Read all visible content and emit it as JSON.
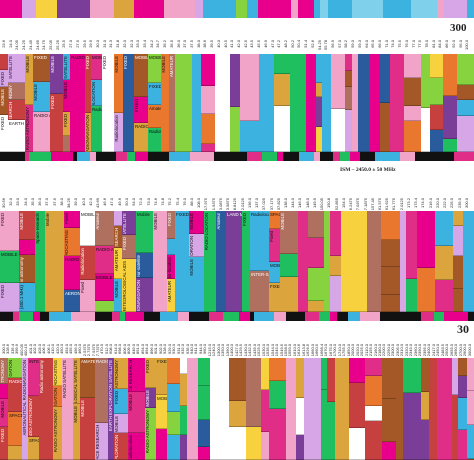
{
  "markers": {
    "top_right": "300",
    "ism": "ISM – 2450.0 ± 50 MHz",
    "bottom_right": "30"
  },
  "band1": {
    "ticks": [
      "23.6",
      "24.0",
      "24.05",
      "24.25",
      "24.45",
      "24.65",
      "24.75",
      "25.05",
      "25.25",
      "25.5",
      "27.0",
      "27.5",
      "29.5",
      "29.9",
      "30.0",
      "31.0",
      "31.3",
      "31.8",
      "32.0",
      "32.3",
      "33.0",
      "33.4",
      "34.2",
      "34.7",
      "35.2",
      "35.5",
      "36.0",
      "37.0",
      "37.5",
      "38.0",
      "38.6",
      "39.5",
      "40.0",
      "40.5",
      "41.0",
      "42.0",
      "42.5",
      "43.5",
      "45.5",
      "46.9",
      "47.0",
      "47.2",
      "48.2",
      "50.2",
      "50.4",
      "51.4",
      "52.6",
      "54.25",
      "55.78",
      "56.9",
      "57.0",
      "58.2",
      "59.0",
      "59.3",
      "64.0",
      "65.0",
      "66.0",
      "71.0",
      "74.0",
      "75.5",
      "76.0",
      "77.0",
      "77.5",
      "78.0",
      "81.0",
      "84.0",
      "86.0",
      "92.0",
      "95.0",
      "100.0"
    ],
    "labels": [
      "FIXED",
      "MOBILE",
      "FIXED",
      "SATELLITE",
      "RADIO ASTRONOMY",
      "SPACE RESEARCH",
      "EARTH EXPLORATION",
      "MOBILE",
      "RADIO ASTRONOMY",
      "FIXED",
      "MOBILE",
      "RADIO ASTRONOMY",
      "MOBILE",
      "FIXED",
      "INTER-SATELLITE",
      "MOBILE",
      "FIXED",
      "RADIO ASTRONOMY",
      "FIXED",
      "RADIONAVIGATION",
      "MOBILE",
      "RADIOLOCATION",
      "Radio astronomy",
      "FIXED",
      "MOBILE",
      "Radiolocation",
      "FIXED",
      "MOBILE",
      "FIXED",
      "RADIONAVIGATION",
      "MOBILE",
      "FIXED",
      "Amateur",
      "Radiolocation",
      "MOBILE",
      "AMATEUR"
    ]
  },
  "band2": {
    "ticks": [
      "30.56",
      "32.0",
      "33.0",
      "34.0",
      "35.0",
      "36.0",
      "37.0",
      "37.5",
      "38.0",
      "38.25",
      "39.0",
      "40.0",
      "42.0",
      "43.69",
      "46.6",
      "47.0",
      "49.6",
      "50.0",
      "54.0",
      "72.0",
      "73.0",
      "74.6",
      "74.8",
      "75.2",
      "75.4",
      "76.0",
      "88.0",
      "108.0",
      "117.975",
      "121.9375",
      "123.0875",
      "123.5875",
      "128.8125",
      "132.0125",
      "136.0",
      "137.0",
      "137.025",
      "137.175",
      "137.825",
      "138.0",
      "144.0",
      "146.0",
      "148.0",
      "149.9",
      "150.05",
      "150.8",
      "152.855",
      "154.0",
      "156.2475",
      "157.0375",
      "157.1875",
      "157.45",
      "161.575",
      "161.625",
      "161.775",
      "162.0125",
      "173.2",
      "173.4",
      "174.0",
      "216.0",
      "220.0",
      "222.0",
      "225.0",
      "235.0",
      "300.0"
    ],
    "labels": [
      "FIXED",
      "MOBILE",
      "FIXED",
      "MOBILE",
      "Radio astronomy",
      "Standard frequency and time signal satellite (400.1 MHz)",
      "Space research",
      "Mobile",
      "Fixed",
      "BROADCASTING",
      "RADIO ASTRONOMY",
      "AERONAUTICAL RADIONAVIGATION",
      "MOBILE",
      "Radiolocation",
      "Fixed",
      "Amateur",
      "RADIO ASTRONOMY",
      "MOBILE SATELLITE",
      "SPACE RESEARCH",
      "AMATEUR",
      "MOBILE",
      "INTER-SATELLITE",
      "FIXED",
      "METEOROLOGICAL AIDS",
      "Mobile",
      "Amateur-satellite",
      "RADIONAVIGATION",
      "MOBILE",
      "FIXED",
      "Radio-location",
      "AMATEUR",
      "FIXED",
      "MOBILE",
      "EARTH EXPLORATION",
      "MOBILE",
      "RADIO LOCATION",
      "Amateur",
      "LAND MOBILE",
      "FIXED",
      "Radiolocation",
      "INTER-SATELLITE",
      "SPACE RESEARCH",
      "Fixed",
      "MOBILE",
      "FIXED",
      "MOBILE"
    ]
  },
  "band3": {
    "ticks": [
      "300.0",
      "328.6",
      "335.4",
      "399.9",
      "400.05",
      "400.15",
      "401.0",
      "402.0",
      "403.0",
      "406.0",
      "406.1",
      "410.0",
      "420.0",
      "450.0",
      "454.0",
      "455.0",
      "456.0",
      "460.0",
      "462.5375",
      "462.7375",
      "467.5375",
      "467.7375",
      "470.0",
      "512.0",
      "608.0",
      "614.0",
      "698.0",
      "806.0",
      "809.0",
      "849.0",
      "851.0",
      "854.0",
      "894.0",
      "896.0",
      "901.0",
      "902.0",
      "928.0",
      "929.0",
      "930.0",
      "931.0",
      "932.0",
      "935.0",
      "940.0",
      "941.0",
      "944.0",
      "960.0",
      "1215.0",
      "1240.0",
      "1300.0",
      "1350.0",
      "1390.0",
      "1400.0",
      "1427.0",
      "1429.5",
      "1430.0",
      "1432.0",
      "1435.0",
      "1525.0",
      "1530.0",
      "1535.0",
      "1544.0",
      "1545.0",
      "1549.5",
      "1558.5",
      "1559.0",
      "1610.0",
      "1610.6",
      "1613.8",
      "1626.5",
      "1660.0",
      "1660.5",
      "1668.4",
      "1670.0",
      "1675.0",
      "1700.0",
      "1710.0",
      "1755.0",
      "1850.0",
      "2000.0",
      "2020.0",
      "2025.0",
      "2110.0",
      "2155.0",
      "2160.0",
      "2180.0",
      "2200.0",
      "2290.0",
      "2300.0",
      "2305.0",
      "2310.0",
      "2320.0",
      "2345.0",
      "2360.0",
      "2390.0",
      "2395.0",
      "2400.0",
      "2417.0",
      "2450.0",
      "2483.5",
      "2500.0",
      "2655.0",
      "2690.0",
      "2700.0",
      "2900.0",
      "3000.0"
    ],
    "labels": [
      "RADIO ASTRONOMY",
      "MOBILE",
      "FIXED",
      "RADIO NAVIGATION",
      "RADIO ASTRONOMY",
      "SPACE RESEARCH",
      "AERONAUTICAL RADIONAVIGATION",
      "INTER-NAVIGATION SATELLITE",
      "RADIO ASTRONOMY",
      "SPACE RESEARCH",
      "Radio astronomy",
      "BROADCASTING",
      "AERONAUTICAL RADIONAVIGATION",
      "RADIO ASTRONOMY",
      "RADIO SATELLITE",
      "METEOROLOGICAL SATELLITE",
      "MOBILE",
      "AMATEUR",
      "MOBILE",
      "RADIO ASTRONOMY",
      "SPACE RESEARCH",
      "EARTH EXPLORATION SATELLITE",
      "RADIO ASTRONOMY",
      "FIXED",
      "MOBILE",
      "EARTH EXPLORATION",
      "SPACE RESEARCH",
      "MOBILE",
      "Radiolocation",
      "FIXED",
      "MOBILE",
      "RADIO ASTRONOMY",
      "FIXED",
      "MOBILE"
    ]
  },
  "colors": {
    "mobile": "#d6a6e6",
    "fixed": "#f2a3c8",
    "broadcast": "#7a3d98",
    "radioastro": "#f7d23e",
    "radiolocation": "#e02d88",
    "radionav": "#3bb2e0",
    "aero": "#e9782e",
    "satellite": "#dba43c",
    "space": "#b07060",
    "earth": "#a45828",
    "amateur": "#c64040",
    "inter": "#ffffff",
    "meteo": "#86d23f",
    "maritime": "#2a5c9d",
    "magenta": "#e8008c",
    "green": "#1fbf5f"
  }
}
